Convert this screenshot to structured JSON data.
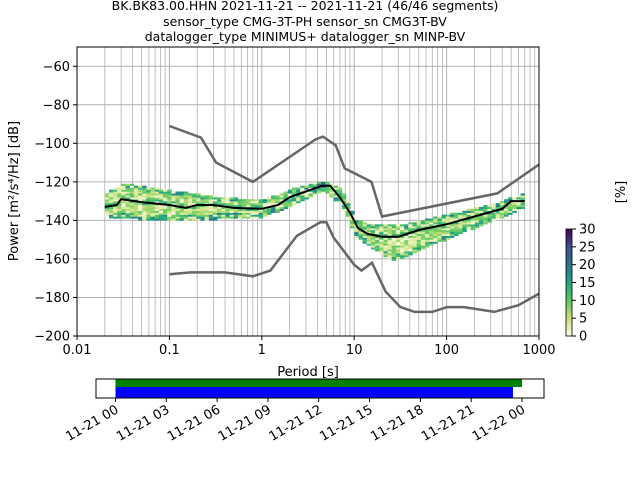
{
  "chart_data": {
    "type": "heatmap",
    "title_lines": [
      "BK.BK83.00.HHN   2021-11-21 -- 2021-11-21  (46/46 segments)",
      "sensor_type CMG-3T-PH sensor_sn CMG3T-BV",
      "datalogger_type MINIMUS+ datalogger_sn MINP-BV"
    ],
    "xlabel": "Period [s]",
    "ylabel": "Power [m²/s⁴/Hz] [dB]",
    "xscale": "log",
    "xlim": [
      0.01,
      1000
    ],
    "ylim": [
      -200,
      -50
    ],
    "grid": true,
    "xticks": [
      {
        "v": 0.01,
        "label": "0.01"
      },
      {
        "v": 0.1,
        "label": "0.1"
      },
      {
        "v": 1,
        "label": "1"
      },
      {
        "v": 10,
        "label": "10"
      },
      {
        "v": 100,
        "label": "100"
      },
      {
        "v": 1000,
        "label": "1000"
      }
    ],
    "yticks": [
      {
        "v": -60,
        "label": "−60"
      },
      {
        "v": -80,
        "label": "−80"
      },
      {
        "v": -100,
        "label": "−100"
      },
      {
        "v": -120,
        "label": "−120"
      },
      {
        "v": -140,
        "label": "−140"
      },
      {
        "v": -160,
        "label": "−160"
      },
      {
        "v": -180,
        "label": "−180"
      },
      {
        "v": -200,
        "label": "−200"
      }
    ],
    "noise_models": {
      "color": "#666666",
      "high": [
        [
          0.1,
          -91
        ],
        [
          0.22,
          -97
        ],
        [
          0.32,
          -110
        ],
        [
          0.8,
          -120
        ],
        [
          3.8,
          -98
        ],
        [
          4.6,
          -96.5
        ],
        [
          6.3,
          -101
        ],
        [
          7.9,
          -113
        ],
        [
          15.4,
          -120
        ],
        [
          20,
          -138
        ],
        [
          354,
          -126
        ],
        [
          1000,
          -111
        ]
      ],
      "low": [
        [
          0.1,
          -168
        ],
        [
          0.17,
          -167
        ],
        [
          0.4,
          -167
        ],
        [
          0.8,
          -169
        ],
        [
          1.24,
          -166
        ],
        [
          2.4,
          -148
        ],
        [
          4.3,
          -141
        ],
        [
          5,
          -141
        ],
        [
          6,
          -149
        ],
        [
          10,
          -163
        ],
        [
          12,
          -166
        ],
        [
          15.6,
          -162
        ],
        [
          21.9,
          -177
        ],
        [
          31.6,
          -185
        ],
        [
          45,
          -187.5
        ],
        [
          70,
          -187.5
        ],
        [
          101,
          -185
        ],
        [
          154,
          -185
        ],
        [
          328,
          -187.5
        ],
        [
          600,
          -184
        ],
        [
          1000,
          -178
        ]
      ]
    },
    "mean_curve": [
      [
        0.02,
        -133
      ],
      [
        0.027,
        -132
      ],
      [
        0.03,
        -129
      ],
      [
        0.05,
        -130.5
      ],
      [
        0.1,
        -132
      ],
      [
        0.15,
        -133.5
      ],
      [
        0.2,
        -132
      ],
      [
        0.3,
        -132
      ],
      [
        0.5,
        -133.5
      ],
      [
        1,
        -134
      ],
      [
        1.5,
        -132
      ],
      [
        2,
        -128
      ],
      [
        3,
        -125
      ],
      [
        4.5,
        -122
      ],
      [
        5.5,
        -122
      ],
      [
        7,
        -128
      ],
      [
        9,
        -136
      ],
      [
        11,
        -144
      ],
      [
        14,
        -147
      ],
      [
        20,
        -148.5
      ],
      [
        30,
        -148.5
      ],
      [
        50,
        -145
      ],
      [
        100,
        -142
      ],
      [
        200,
        -138
      ],
      [
        400,
        -134
      ],
      [
        500,
        -130
      ],
      [
        700,
        -130
      ]
    ],
    "histogram_envelope": {
      "upper": [
        [
          0.02,
          -126
        ],
        [
          0.03,
          -121
        ],
        [
          0.1,
          -125
        ],
        [
          0.3,
          -128
        ],
        [
          1,
          -130
        ],
        [
          2,
          -124
        ],
        [
          4.5,
          -120
        ],
        [
          7,
          -124
        ],
        [
          10,
          -140
        ],
        [
          15,
          -142
        ],
        [
          30,
          -143
        ],
        [
          100,
          -137
        ],
        [
          300,
          -132
        ],
        [
          700,
          -126
        ]
      ],
      "lower": [
        [
          0.02,
          -138
        ],
        [
          0.1,
          -140
        ],
        [
          0.3,
          -139
        ],
        [
          1,
          -138
        ],
        [
          2,
          -132
        ],
        [
          4.5,
          -124
        ],
        [
          7,
          -132
        ],
        [
          10,
          -148
        ],
        [
          15,
          -154
        ],
        [
          25,
          -161
        ],
        [
          50,
          -155
        ],
        [
          100,
          -149
        ],
        [
          300,
          -140
        ],
        [
          700,
          -133
        ]
      ]
    },
    "colorbar": {
      "label": "[%]",
      "range": [
        0,
        30
      ],
      "ticks": [
        "0",
        "5",
        "10",
        "15",
        "20",
        "25",
        "30"
      ],
      "colors": [
        "#fdfde8",
        "#c8e07a",
        "#5ec962",
        "#21a585",
        "#2c728e",
        "#3b528b",
        "#440154"
      ]
    },
    "coverage": {
      "range_hours": [
        -1.15,
        25.3
      ],
      "ticks": [
        {
          "h": 0,
          "label": "11-21 00"
        },
        {
          "h": 3,
          "label": "11-21 03"
        },
        {
          "h": 6,
          "label": "11-21 06"
        },
        {
          "h": 9,
          "label": "11-21 09"
        },
        {
          "h": 12,
          "label": "11-21 12"
        },
        {
          "h": 15,
          "label": "11-21 15"
        },
        {
          "h": 18,
          "label": "11-21 18"
        },
        {
          "h": 21,
          "label": "11-21 21"
        },
        {
          "h": 24,
          "label": "11-22 00"
        }
      ],
      "bars": [
        {
          "name": "data-used",
          "start_h": 0,
          "end_h": 24,
          "color": "#008000"
        },
        {
          "name": "data-available",
          "start_h": 0,
          "end_h": 23.47,
          "color": "#0000ff"
        }
      ]
    }
  }
}
